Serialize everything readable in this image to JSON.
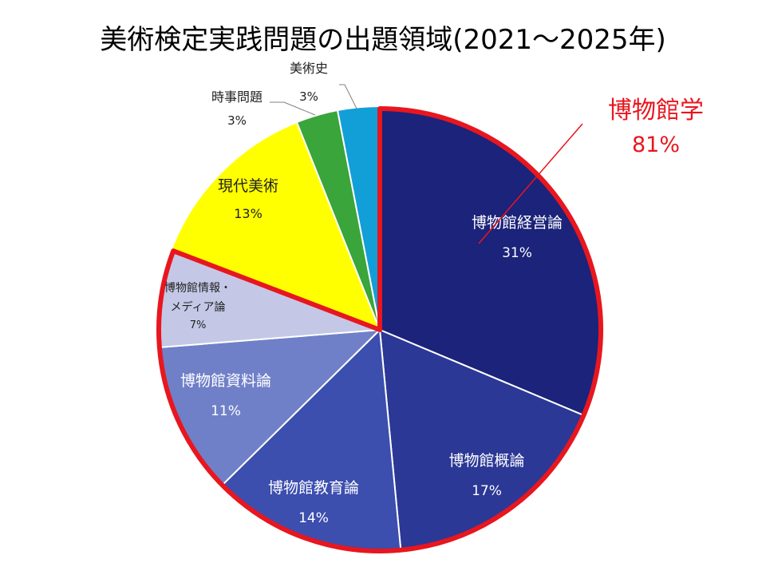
{
  "title": "美術検定実践問題の出題領域(2021～2025年)",
  "colors": {
    "highlight": "#e8161e",
    "slice_border": "#ffffff",
    "callout_line": "#808080"
  },
  "chart_data": {
    "type": "pie",
    "title": "美術検定実践問題の出題領域(2021～2025年)",
    "start_angle_deg": 0,
    "direction": "clockwise",
    "slices": [
      {
        "label": "博物館経営論",
        "value": 31,
        "value_label": "31%",
        "color": "#1b237a",
        "text_color": "#ffffff"
      },
      {
        "label": "博物館概論",
        "value": 17,
        "value_label": "17%",
        "color": "#2b3895",
        "text_color": "#ffffff"
      },
      {
        "label": "博物館教育論",
        "value": 14,
        "value_label": "14%",
        "color": "#3c4eae",
        "text_color": "#ffffff"
      },
      {
        "label": "博物館資料論",
        "value": 11,
        "value_label": "11%",
        "color": "#7080c8",
        "text_color": "#ffffff"
      },
      {
        "label": "博物館情報・メディア論",
        "label_lines": [
          "博物館情報・",
          "メディア論"
        ],
        "value": 7,
        "value_label": "7%",
        "color": "#c4c8e6",
        "text_color": "#222222"
      },
      {
        "label": "現代美術",
        "value": 13,
        "value_label": "13%",
        "color": "#ffff00",
        "text_color": "#222222"
      },
      {
        "label": "時事問題",
        "value": 3,
        "value_label": "3%",
        "color": "#3aa53a",
        "text_color": "#222222"
      },
      {
        "label": "美術史",
        "value": 3,
        "value_label": "3%",
        "color": "#129fd8",
        "text_color": "#222222"
      }
    ],
    "group_highlight": {
      "label": "博物館学",
      "value": 81,
      "value_label": "81%",
      "members": [
        "博物館経営論",
        "博物館概論",
        "博物館教育論",
        "博物館資料論",
        "博物館情報・メディア論"
      ]
    }
  }
}
